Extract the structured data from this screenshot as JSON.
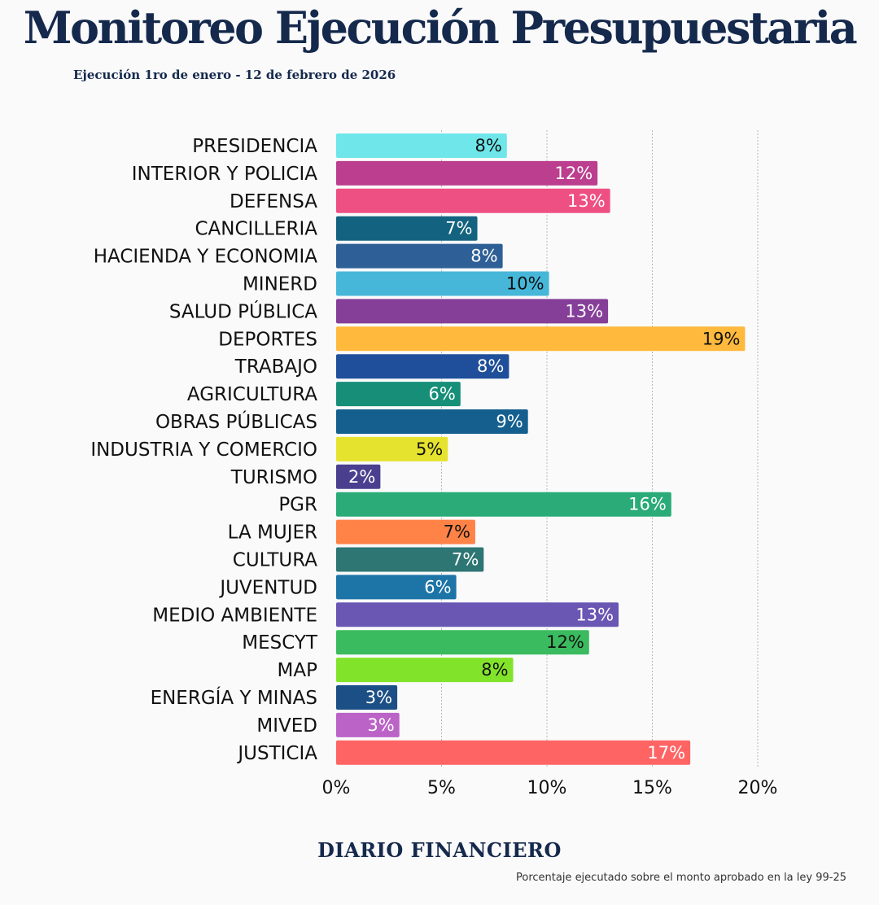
{
  "header": {
    "title": "Monitoreo Ejecución Presupuestaria",
    "subtitle": "Ejecución 1ro de enero - 12 de febrero de 2026"
  },
  "footer": {
    "brand": "DIARIO FINANCIERO",
    "note": "Porcentaje ejecutado sobre el monto aprobado en la ley 99-25"
  },
  "chart_data": {
    "type": "bar",
    "orientation": "horizontal",
    "title": "Monitoreo Ejecución Presupuestaria",
    "xlabel": "",
    "ylabel": "",
    "xlim": [
      0,
      20
    ],
    "ticks": [
      0,
      5,
      10,
      15,
      20
    ],
    "tick_labels": [
      "0%",
      "5%",
      "10%",
      "15%",
      "20%"
    ],
    "grid": "vertical dotted",
    "categories": [
      "PRESIDENCIA",
      "INTERIOR Y POLICIA",
      "DEFENSA",
      "CANCILLERIA",
      "HACIENDA Y ECONOMIA",
      "MINERD",
      "SALUD PÚBLICA",
      "DEPORTES",
      "TRABAJO",
      "AGRICULTURA",
      "OBRAS PÚBLICAS",
      "INDUSTRIA Y COMERCIO",
      "TURISMO",
      "PGR",
      "LA MUJER",
      "CULTURA",
      "JUVENTUD",
      "MEDIO AMBIENTE",
      "MESCYT",
      "MAP",
      "ENERGÍA Y MINAS",
      "MIVED",
      "JUSTICIA"
    ],
    "values": [
      8.1,
      12.4,
      13.0,
      6.7,
      7.9,
      10.1,
      12.9,
      19.4,
      8.2,
      5.9,
      9.1,
      5.3,
      2.1,
      15.9,
      6.6,
      7.0,
      5.7,
      13.4,
      12.0,
      8.4,
      2.9,
      3.0,
      16.8
    ],
    "value_labels": [
      "8%",
      "12%",
      "13%",
      "7%",
      "8%",
      "10%",
      "13%",
      "19%",
      "8%",
      "6%",
      "9%",
      "5%",
      "2%",
      "16%",
      "7%",
      "7%",
      "6%",
      "13%",
      "12%",
      "8%",
      "3%",
      "3%",
      "17%"
    ],
    "colors": [
      "#6ee6ea",
      "#bb3f8e",
      "#ef5083",
      "#136380",
      "#2e5f96",
      "#46b7d9",
      "#853f98",
      "#ffb93c",
      "#1f4f9a",
      "#178f78",
      "#145f8e",
      "#e5e32e",
      "#4a3f8f",
      "#2aab78",
      "#ff8346",
      "#2d7673",
      "#1d74a7",
      "#6a56b3",
      "#3bbb5f",
      "#82e42a",
      "#1b4f86",
      "#bb63c7",
      "#ff6464"
    ],
    "label_colors": [
      "#111111",
      "#ffffff",
      "#ffffff",
      "#ffffff",
      "#ffffff",
      "#111111",
      "#ffffff",
      "#111111",
      "#ffffff",
      "#ffffff",
      "#ffffff",
      "#111111",
      "#ffffff",
      "#ffffff",
      "#111111",
      "#ffffff",
      "#ffffff",
      "#ffffff",
      "#111111",
      "#111111",
      "#ffffff",
      "#ffffff",
      "#ffffff"
    ]
  }
}
